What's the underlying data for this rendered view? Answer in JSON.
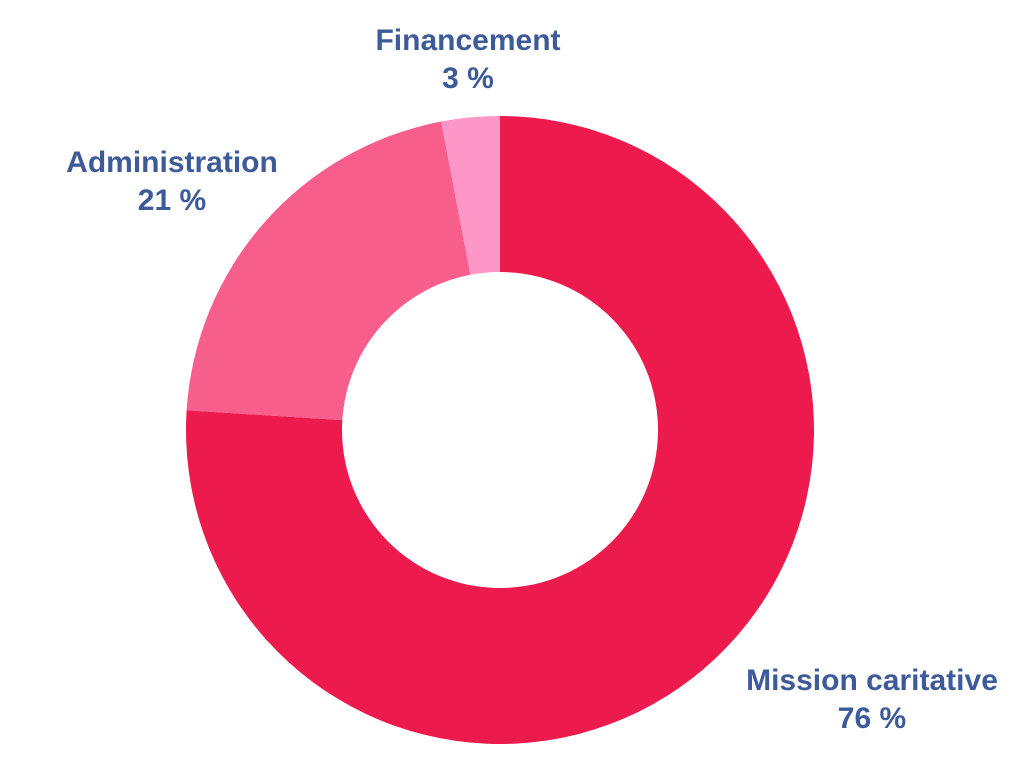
{
  "chart_data": {
    "type": "pie",
    "donut": true,
    "title": "",
    "legend": "none",
    "label_color": "#3d5a99",
    "start_angle_deg": 0,
    "direction": "clockwise",
    "slices": [
      {
        "label": "Mission caritative",
        "value": 76,
        "value_text": "76 %",
        "color": "#ec1a4d"
      },
      {
        "label": "Administration",
        "value": 21,
        "value_text": "21 %",
        "color": "#f85e8c"
      },
      {
        "label": "Financement",
        "value": 3,
        "value_text": "3 %",
        "color": "#ff96c8"
      }
    ]
  }
}
